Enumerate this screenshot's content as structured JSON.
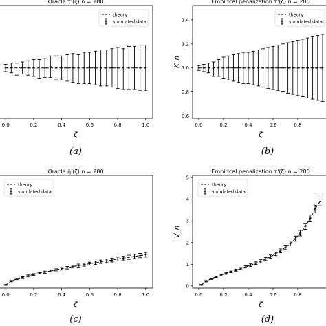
{
  "chart_data": [
    {
      "type": "line",
      "title": "Oracle τ̂'(ζ)   n̄ = 200",
      "xlabel": "ζ",
      "ylabel": "",
      "caption": "(a)",
      "xlim": [
        -0.05,
        1.05
      ],
      "ylim": [
        0.58,
        1.52
      ],
      "xticks": [
        "0.0",
        "0.2",
        "0.4",
        "0.6",
        "0.8",
        "1.0"
      ],
      "yticks": [],
      "legend": {
        "position": "top-right",
        "entries": [
          "theory",
          "simulated data"
        ]
      },
      "x": [
        0.0,
        0.04,
        0.08,
        0.12,
        0.16,
        0.2,
        0.24,
        0.28,
        0.32,
        0.36,
        0.4,
        0.44,
        0.48,
        0.52,
        0.56,
        0.6,
        0.64,
        0.68,
        0.72,
        0.76,
        0.8,
        0.84,
        0.88,
        0.92,
        0.96,
        1.0
      ],
      "series": [
        {
          "name": "theory",
          "values": [
            1.0,
            1.0,
            1.0,
            1.0,
            1.0,
            1.0,
            1.0,
            1.0,
            1.0,
            1.0,
            1.0,
            1.0,
            1.0,
            1.0,
            1.0,
            1.0,
            1.0,
            1.0,
            1.0,
            1.0,
            1.0,
            1.0,
            1.0,
            1.0,
            1.0,
            1.0
          ]
        },
        {
          "name": "simulated data",
          "values": [
            1.0,
            1.0,
            0.99,
            1.0,
            1.0,
            1.0,
            0.99,
            1.0,
            1.01,
            1.0,
            1.0,
            1.0,
            1.0,
            0.99,
            1.0,
            1.0,
            1.0,
            1.0,
            1.0,
            1.0,
            1.0,
            0.99,
            1.0,
            1.0,
            1.0,
            1.0
          ],
          "errors": [
            0.03,
            0.04,
            0.05,
            0.05,
            0.06,
            0.07,
            0.08,
            0.08,
            0.09,
            0.1,
            0.1,
            0.11,
            0.12,
            0.12,
            0.13,
            0.13,
            0.14,
            0.15,
            0.15,
            0.16,
            0.17,
            0.17,
            0.18,
            0.18,
            0.19,
            0.19
          ]
        }
      ]
    },
    {
      "type": "line",
      "title": "Empirical penalization τ̂'(ζ)   n̄ = 200",
      "xlabel": "ζ",
      "ylabel": "K_n",
      "caption": "(b)",
      "xlim": [
        -0.05,
        1.05
      ],
      "ylim": [
        0.58,
        1.52
      ],
      "xticks": [
        "0.0",
        "0.2",
        "0.4",
        "0.6",
        "0.8"
      ],
      "yticks": [
        "0.6",
        "0.8",
        "1.0",
        "1.2",
        "1.4"
      ],
      "legend": {
        "position": "top-right",
        "entries": [
          "theory",
          "simulated data"
        ]
      },
      "x": [
        0.0,
        0.04,
        0.08,
        0.12,
        0.16,
        0.2,
        0.24,
        0.28,
        0.32,
        0.36,
        0.4,
        0.44,
        0.48,
        0.52,
        0.56,
        0.6,
        0.64,
        0.68,
        0.72,
        0.76,
        0.8,
        0.84,
        0.88,
        0.92,
        0.96,
        1.0
      ],
      "series": [
        {
          "name": "theory",
          "values": [
            1.0,
            1.0,
            1.0,
            1.0,
            1.0,
            1.0,
            1.0,
            1.0,
            1.0,
            1.0,
            1.0,
            1.0,
            1.0,
            1.0,
            1.0,
            1.0,
            1.0,
            1.0,
            1.0,
            1.0,
            1.0,
            1.0,
            1.0,
            1.0,
            1.0,
            1.0
          ]
        },
        {
          "name": "simulated data",
          "values": [
            1.0,
            1.0,
            1.0,
            0.99,
            1.0,
            1.0,
            1.0,
            1.0,
            1.0,
            1.0,
            1.0,
            1.0,
            1.0,
            1.0,
            1.0,
            1.0,
            1.0,
            1.0,
            1.0,
            1.0,
            1.0,
            1.0,
            1.0,
            1.0,
            1.0,
            1.0
          ],
          "errors": [
            0.02,
            0.03,
            0.04,
            0.06,
            0.07,
            0.09,
            0.1,
            0.11,
            0.12,
            0.13,
            0.13,
            0.14,
            0.15,
            0.16,
            0.17,
            0.18,
            0.19,
            0.2,
            0.21,
            0.22,
            0.23,
            0.24,
            0.25,
            0.26,
            0.27,
            0.28
          ]
        }
      ]
    },
    {
      "type": "line",
      "title": "Oracle η̂'(ζ)   n = 200",
      "xlabel": "ζ",
      "ylabel": "",
      "caption": "(c)",
      "xlim": [
        -0.05,
        1.05
      ],
      "ylim": [
        -0.15,
        5.15
      ],
      "xticks": [
        "0.0",
        "0.2",
        "0.4",
        "0.6",
        "0.8",
        "1.0"
      ],
      "yticks": [],
      "legend": {
        "position": "top-left",
        "entries": [
          "theory",
          "simulated data"
        ]
      },
      "x": [
        0.0,
        0.04,
        0.08,
        0.12,
        0.16,
        0.2,
        0.24,
        0.28,
        0.32,
        0.36,
        0.4,
        0.44,
        0.48,
        0.52,
        0.56,
        0.6,
        0.64,
        0.68,
        0.72,
        0.76,
        0.8,
        0.84,
        0.88,
        0.92,
        0.96,
        1.0
      ],
      "series": [
        {
          "name": "theory",
          "values": [
            0.0,
            0.18,
            0.28,
            0.36,
            0.43,
            0.49,
            0.55,
            0.6,
            0.66,
            0.71,
            0.76,
            0.81,
            0.86,
            0.91,
            0.95,
            1.0,
            1.04,
            1.09,
            1.13,
            1.17,
            1.22,
            1.26,
            1.3,
            1.34,
            1.38,
            1.42
          ]
        },
        {
          "name": "simulated data",
          "values": [
            0.0,
            0.18,
            0.28,
            0.36,
            0.43,
            0.49,
            0.55,
            0.6,
            0.66,
            0.71,
            0.76,
            0.81,
            0.86,
            0.91,
            0.95,
            1.0,
            1.04,
            1.09,
            1.13,
            1.17,
            1.22,
            1.26,
            1.3,
            1.34,
            1.38,
            1.42
          ],
          "errors": [
            0.02,
            0.03,
            0.03,
            0.03,
            0.04,
            0.04,
            0.04,
            0.05,
            0.05,
            0.05,
            0.06,
            0.06,
            0.06,
            0.07,
            0.07,
            0.07,
            0.08,
            0.08,
            0.08,
            0.09,
            0.09,
            0.09,
            0.1,
            0.1,
            0.1,
            0.11
          ]
        }
      ]
    },
    {
      "type": "line",
      "title": "Empirical penalization τ'(ζ)   n = 200",
      "xlabel": "ζ",
      "ylabel": "V_n",
      "caption": "(d)",
      "xlim": [
        -0.05,
        1.05
      ],
      "ylim": [
        -0.1,
        5.1
      ],
      "xticks": [
        "0.0",
        "0.2",
        "0.4",
        "0.6",
        "0.8"
      ],
      "yticks": [
        "0",
        "1",
        "2",
        "3",
        "4",
        "5"
      ],
      "legend": {
        "position": "top-left",
        "entries": [
          "theory",
          "simulated data"
        ]
      },
      "x": [
        0.02,
        0.06,
        0.1,
        0.14,
        0.18,
        0.22,
        0.26,
        0.3,
        0.34,
        0.38,
        0.42,
        0.46,
        0.5,
        0.54,
        0.58,
        0.62,
        0.66,
        0.7,
        0.74,
        0.78,
        0.82,
        0.86,
        0.9,
        0.94,
        0.98
      ],
      "series": [
        {
          "name": "theory",
          "values": [
            0.05,
            0.22,
            0.33,
            0.42,
            0.5,
            0.58,
            0.65,
            0.72,
            0.8,
            0.88,
            0.96,
            1.05,
            1.14,
            1.24,
            1.35,
            1.48,
            1.62,
            1.78,
            1.96,
            2.18,
            2.44,
            2.75,
            3.12,
            3.55,
            3.9
          ]
        },
        {
          "name": "simulated data",
          "values": [
            0.05,
            0.22,
            0.33,
            0.42,
            0.5,
            0.58,
            0.65,
            0.72,
            0.8,
            0.88,
            0.96,
            1.05,
            1.14,
            1.24,
            1.35,
            1.48,
            1.62,
            1.78,
            1.96,
            2.18,
            2.44,
            2.75,
            3.12,
            3.55,
            3.9
          ],
          "errors": [
            0.02,
            0.03,
            0.03,
            0.03,
            0.04,
            0.04,
            0.04,
            0.05,
            0.05,
            0.05,
            0.06,
            0.06,
            0.07,
            0.07,
            0.08,
            0.08,
            0.09,
            0.1,
            0.11,
            0.12,
            0.13,
            0.14,
            0.16,
            0.18,
            0.2
          ]
        }
      ]
    }
  ]
}
